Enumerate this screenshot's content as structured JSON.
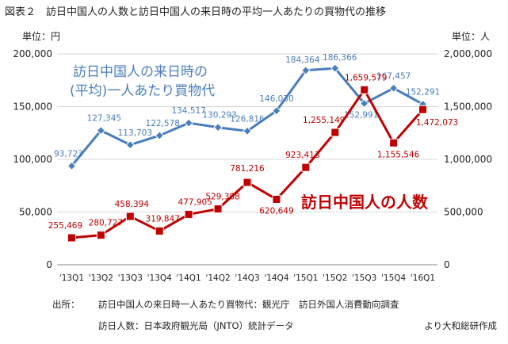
{
  "figure_title": "図表２　訪日中国人の人数と訪日中国人の来日時の平均一人あたりの買物代の推移",
  "source": {
    "label": "出所：",
    "line1": "訪日中国人の来日時一人あたり買物代：観光庁　訪日外国人消費動向調査",
    "line2": "訪日人数：日本政府観光局（JNTO）統計データ",
    "credit": "より大和総研作成"
  },
  "chart_data": {
    "type": "line",
    "categories": [
      "'13Q1",
      "'13Q2",
      "'13Q3",
      "'13Q4",
      "'14Q1",
      "'14Q2",
      "'14Q3",
      "'14Q4",
      "'15Q1",
      "'15Q2",
      "'15Q3",
      "'15Q4",
      "'16Q1"
    ],
    "y_left": {
      "unit_label": "単位：円",
      "ylim": [
        0,
        200000
      ],
      "ticks": [
        "0",
        "50,000",
        "100,000",
        "150,000",
        "200,000"
      ]
    },
    "y_right": {
      "unit_label": "単位：人",
      "ylim": [
        0,
        2000000
      ],
      "ticks": [
        "0",
        "500,000",
        "1,000,000",
        "1,500,000",
        "2,000,000"
      ]
    },
    "grid": true,
    "series": [
      {
        "name_lines": [
          "訪日中国人の来日時の",
          "(平均)一人あたり買物代"
        ],
        "axis": "left",
        "color": "#4a7ebb",
        "marker": "diamond",
        "values": [
          93723,
          127345,
          113703,
          122578,
          134517,
          130293,
          126816,
          146030,
          184364,
          186366,
          152991,
          167457,
          152291
        ],
        "labels": [
          "93,723",
          "127,345",
          "113,703",
          "122,578",
          "134,517",
          "130,293",
          "126,816",
          "146,030",
          "184,364",
          "186,366",
          "152,991",
          "167,457",
          "152,291"
        ]
      },
      {
        "name_lines": [
          "訪日中国人の人数"
        ],
        "axis": "right",
        "color": "#c00000",
        "marker": "square",
        "values": [
          255469,
          280727,
          458394,
          319847,
          477905,
          529388,
          781216,
          620649,
          923413,
          1255149,
          1659579,
          1155546,
          1472073
        ],
        "labels": [
          "255,469",
          "280,727",
          "458,394",
          "319,847",
          "477,905",
          "529,388",
          "781,216",
          "620,649",
          "923,413",
          "1,255,149",
          "1,659,579",
          "1,155,546",
          "1,472,073"
        ]
      }
    ]
  }
}
